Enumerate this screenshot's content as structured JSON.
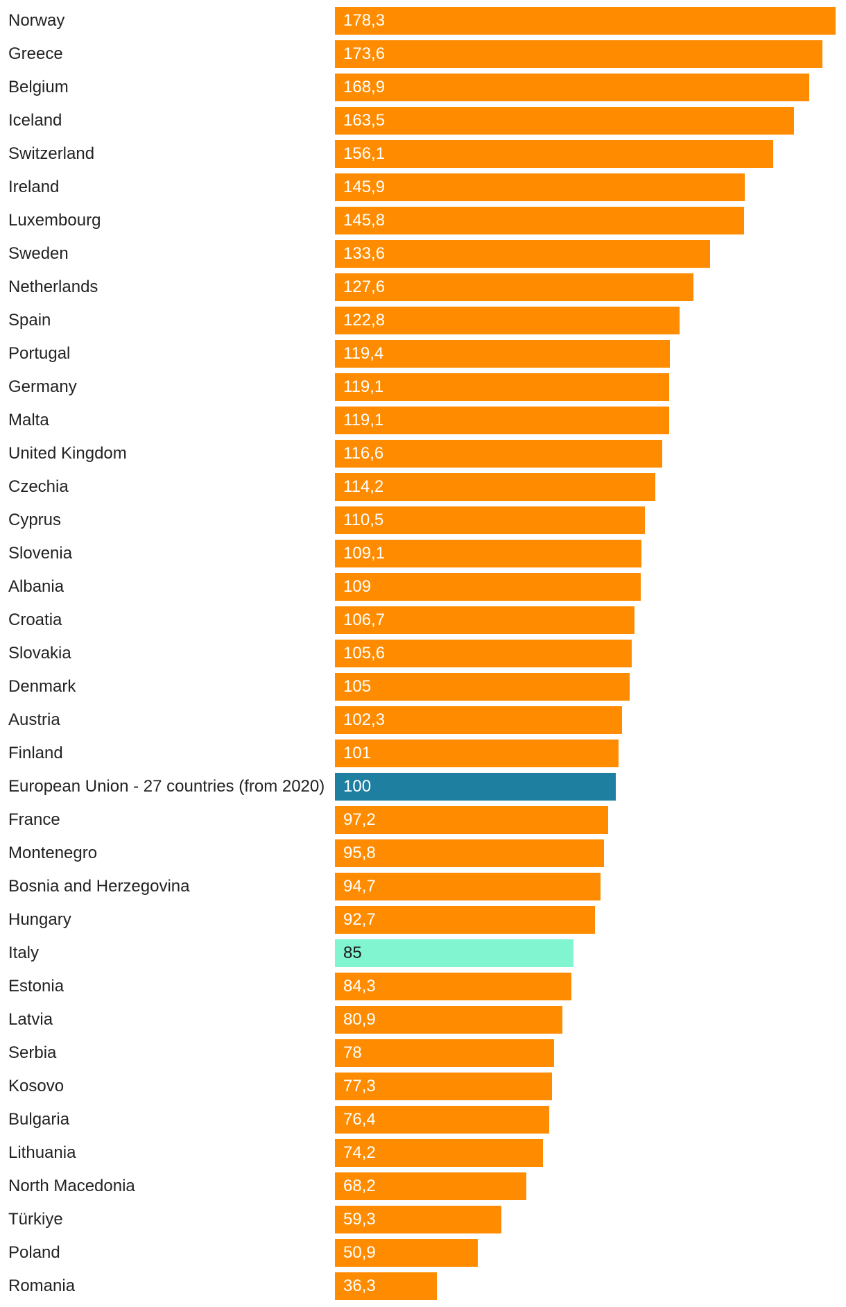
{
  "chart_data": {
    "type": "bar",
    "orientation": "horizontal",
    "categories": [
      "Norway",
      "Greece",
      "Belgium",
      "Iceland",
      "Switzerland",
      "Ireland",
      "Luxembourg",
      "Sweden",
      "Netherlands",
      "Spain",
      "Portugal",
      "Germany",
      "Malta",
      "United Kingdom",
      "Czechia",
      "Cyprus",
      "Slovenia",
      "Albania",
      "Croatia",
      "Slovakia",
      "Denmark",
      "Austria",
      "Finland",
      "European Union - 27 countries (from 2020)",
      "France",
      "Montenegro",
      "Bosnia and Herzegovina",
      "Hungary",
      "Italy",
      "Estonia",
      "Latvia",
      "Serbia",
      "Kosovo",
      "Bulgaria",
      "Lithuania",
      "North Macedonia",
      "Türkiye",
      "Poland",
      "Romania"
    ],
    "values": [
      178.3,
      173.6,
      168.9,
      163.5,
      156.1,
      145.9,
      145.8,
      133.6,
      127.6,
      122.8,
      119.4,
      119.1,
      119.1,
      116.6,
      114.2,
      110.5,
      109.1,
      109,
      106.7,
      105.6,
      105,
      102.3,
      101,
      100,
      97.2,
      95.8,
      94.7,
      92.7,
      85,
      84.3,
      80.9,
      78,
      77.3,
      76.4,
      74.2,
      68.2,
      59.3,
      50.9,
      36.3
    ],
    "value_labels": [
      "178,3",
      "173,6",
      "168,9",
      "163,5",
      "156,1",
      "145,9",
      "145,8",
      "133,6",
      "127,6",
      "122,8",
      "119,4",
      "119,1",
      "119,1",
      "116,6",
      "114,2",
      "110,5",
      "109,1",
      "109",
      "106,7",
      "105,6",
      "105",
      "102,3",
      "101",
      "100",
      "97,2",
      "95,8",
      "94,7",
      "92,7",
      "85",
      "84,3",
      "80,9",
      "78",
      "77,3",
      "76,4",
      "74,2",
      "68,2",
      "59,3",
      "50,9",
      "36,3"
    ],
    "highlights": {
      "European Union - 27 countries (from 2020)": "#1f7fa1",
      "Italy": "#80f5cf"
    },
    "default_color": "#ff8c00",
    "xlim": [
      0,
      178.3
    ],
    "title": "",
    "xlabel": "",
    "ylabel": ""
  }
}
